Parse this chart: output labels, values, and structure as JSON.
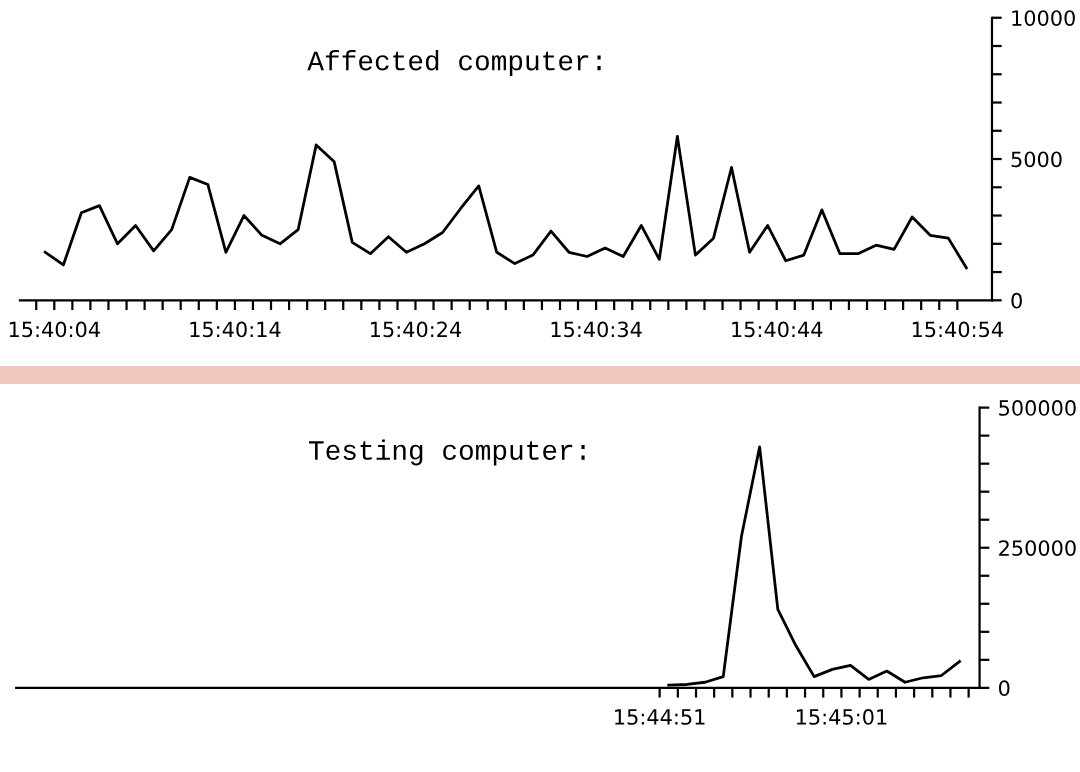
{
  "chart_data": [
    {
      "type": "line",
      "title": "Affected computer:",
      "x": [
        15.667639,
        15.667917,
        15.668194,
        15.668472,
        15.66875,
        15.669028,
        15.669306,
        15.669583,
        15.669861,
        15.670139,
        15.670417,
        15.670694,
        15.670972,
        15.67125,
        15.671528,
        15.671806,
        15.672083,
        15.672361,
        15.672639,
        15.672917,
        15.673194,
        15.673472,
        15.67375,
        15.674028,
        15.674306,
        15.674583,
        15.674861,
        15.675139,
        15.675417,
        15.675694,
        15.675972,
        15.67625,
        15.676528,
        15.676806,
        15.677083,
        15.677361,
        15.677639,
        15.677917,
        15.678194,
        15.678472,
        15.67875,
        15.679028,
        15.679306,
        15.679583,
        15.679861,
        15.680139,
        15.680417,
        15.680694,
        15.680972,
        15.68125,
        15.681528,
        15.681806
      ],
      "series": [
        {
          "color": "#000000",
          "values": [
            1700,
            1250,
            3100,
            3350,
            2000,
            2650,
            1750,
            2500,
            4350,
            4100,
            1700,
            3000,
            2300,
            2000,
            2500,
            5500,
            4900,
            2050,
            1650,
            2250,
            1700,
            2000,
            2400,
            3250,
            4050,
            1700,
            1300,
            1600,
            2450,
            1700,
            1550,
            1850,
            1550,
            2650,
            1450,
            5800,
            1600,
            2200,
            4700,
            1700,
            2650,
            1400,
            1600,
            3200,
            1650,
            1650,
            1950,
            1800,
            2950,
            2300,
            2200,
            1150
          ]
        }
      ],
      "xlim": [
        15.66725,
        15.6822
      ],
      "xticks": [
        {
          "value": 15.6675,
          "label": null
        },
        {
          "value": 15.667778,
          "label": "15:40:04"
        },
        {
          "value": 15.668056,
          "label": null
        },
        {
          "value": 15.668333,
          "label": null
        },
        {
          "value": 15.668611,
          "label": null
        },
        {
          "value": 15.668889,
          "label": null
        },
        {
          "value": 15.669167,
          "label": null
        },
        {
          "value": 15.669444,
          "label": null
        },
        {
          "value": 15.669722,
          "label": null
        },
        {
          "value": 15.67,
          "label": null
        },
        {
          "value": 15.670278,
          "label": null
        },
        {
          "value": 15.670556,
          "label": "15:40:14"
        },
        {
          "value": 15.670833,
          "label": null
        },
        {
          "value": 15.671111,
          "label": null
        },
        {
          "value": 15.671389,
          "label": null
        },
        {
          "value": 15.671667,
          "label": null
        },
        {
          "value": 15.671944,
          "label": null
        },
        {
          "value": 15.672222,
          "label": null
        },
        {
          "value": 15.6725,
          "label": null
        },
        {
          "value": 15.672778,
          "label": null
        },
        {
          "value": 15.673056,
          "label": null
        },
        {
          "value": 15.673333,
          "label": "15:40:24"
        },
        {
          "value": 15.673611,
          "label": null
        },
        {
          "value": 15.673889,
          "label": null
        },
        {
          "value": 15.674167,
          "label": null
        },
        {
          "value": 15.674444,
          "label": null
        },
        {
          "value": 15.674722,
          "label": null
        },
        {
          "value": 15.675,
          "label": null
        },
        {
          "value": 15.675278,
          "label": null
        },
        {
          "value": 15.675556,
          "label": null
        },
        {
          "value": 15.675833,
          "label": null
        },
        {
          "value": 15.676111,
          "label": "15:40:34"
        },
        {
          "value": 15.676389,
          "label": null
        },
        {
          "value": 15.676667,
          "label": null
        },
        {
          "value": 15.676944,
          "label": null
        },
        {
          "value": 15.677222,
          "label": null
        },
        {
          "value": 15.6775,
          "label": null
        },
        {
          "value": 15.677778,
          "label": null
        },
        {
          "value": 15.678056,
          "label": null
        },
        {
          "value": 15.678333,
          "label": null
        },
        {
          "value": 15.678611,
          "label": null
        },
        {
          "value": 15.678889,
          "label": "15:40:44"
        },
        {
          "value": 15.679167,
          "label": null
        },
        {
          "value": 15.679444,
          "label": null
        },
        {
          "value": 15.679722,
          "label": null
        },
        {
          "value": 15.68,
          "label": null
        },
        {
          "value": 15.680278,
          "label": null
        },
        {
          "value": 15.680556,
          "label": null
        },
        {
          "value": 15.680833,
          "label": null
        },
        {
          "value": 15.681111,
          "label": null
        },
        {
          "value": 15.681389,
          "label": null
        },
        {
          "value": 15.681667,
          "label": "15:40:54"
        }
      ],
      "ylim": [
        0,
        10000
      ],
      "yticks": [
        0,
        {
          "value": 1000,
          "label": null
        },
        {
          "value": 2000,
          "label": null
        },
        {
          "value": 3000,
          "label": null
        },
        {
          "value": 4000,
          "label": null
        },
        5000,
        {
          "value": 6000,
          "label": null
        },
        {
          "value": 7000,
          "label": null
        },
        {
          "value": 8000,
          "label": null
        },
        {
          "value": 9000,
          "label": null
        },
        10000
      ]
    },
    {
      "type": "line",
      "title": "Testing computer:",
      "x": [
        15.747639,
        15.747917,
        15.748194,
        15.748472,
        15.74875,
        15.749028,
        15.749306,
        15.749583,
        15.749861,
        15.750139,
        15.750417,
        15.750694,
        15.750972,
        15.75125,
        15.751528,
        15.751806,
        15.752083
      ],
      "series": [
        {
          "color": "#000000",
          "values": [
            5000,
            6000,
            10000,
            20000,
            270000,
            430000,
            140000,
            75000,
            20000,
            33000,
            40000,
            15000,
            30000,
            10000,
            18000,
            22000,
            47000
          ]
        }
      ],
      "xlim": [
        15.737667,
        15.752389
      ],
      "xticks": [
        {
          "value": 15.7475,
          "label": "15:44:51"
        },
        {
          "value": 15.747778,
          "label": null
        },
        {
          "value": 15.748056,
          "label": null
        },
        {
          "value": 15.748333,
          "label": null
        },
        {
          "value": 15.748611,
          "label": null
        },
        {
          "value": 15.748889,
          "label": null
        },
        {
          "value": 15.749167,
          "label": null
        },
        {
          "value": 15.749444,
          "label": null
        },
        {
          "value": 15.749722,
          "label": null
        },
        {
          "value": 15.75,
          "label": null
        },
        {
          "value": 15.750278,
          "label": "15:45:01"
        },
        {
          "value": 15.750556,
          "label": null
        },
        {
          "value": 15.750833,
          "label": null
        },
        {
          "value": 15.751111,
          "label": null
        },
        {
          "value": 15.751389,
          "label": null
        },
        {
          "value": 15.751667,
          "label": null
        },
        {
          "value": 15.751944,
          "label": null
        },
        {
          "value": 15.752222,
          "label": null
        }
      ],
      "ylim": [
        0,
        500000
      ],
      "yticks": [
        0,
        {
          "value": 50000,
          "label": null
        },
        {
          "value": 100000,
          "label": null
        },
        {
          "value": 150000,
          "label": null
        },
        {
          "value": 200000,
          "label": null
        },
        250000,
        {
          "value": 300000,
          "label": null
        },
        {
          "value": 350000,
          "label": null
        },
        {
          "value": 400000,
          "label": null
        },
        {
          "value": 450000,
          "label": null
        },
        500000
      ]
    }
  ]
}
